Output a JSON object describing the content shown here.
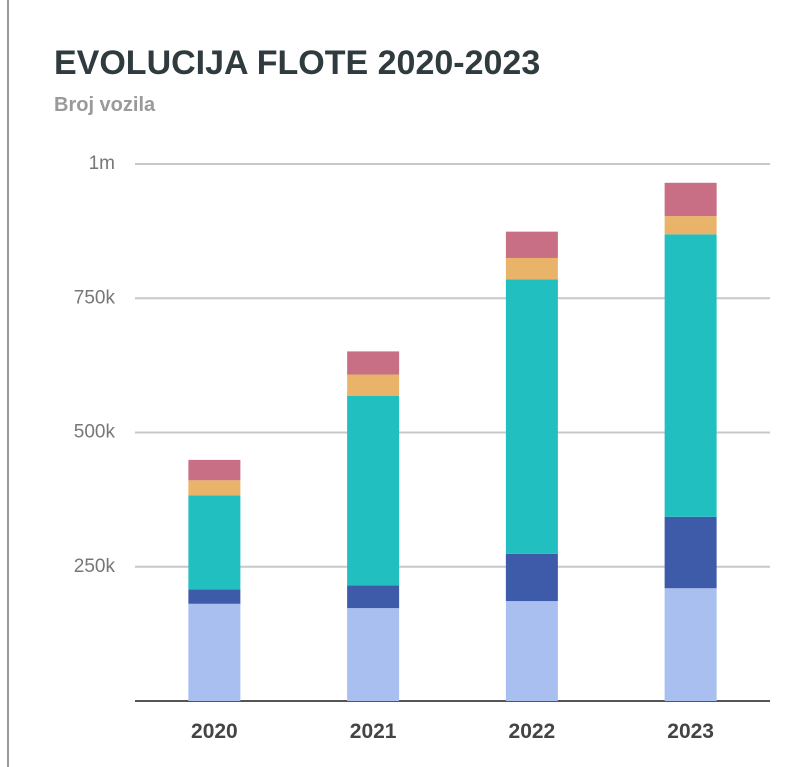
{
  "chart_data": {
    "type": "stacked_bar",
    "title": "EVOLUCIJA FLOTE 2020-2023",
    "subtitle": "Broj vozila",
    "categories": [
      "2020",
      "2021",
      "2022",
      "2023"
    ],
    "series": [
      {
        "color": "#a9bff0",
        "values": [
          181000,
          173000,
          186000,
          210000
        ]
      },
      {
        "color": "#3d5ba8",
        "values": [
          27000,
          42000,
          88000,
          133000
        ]
      },
      {
        "color": "#22bfc1",
        "values": [
          175000,
          353000,
          511000,
          526000
        ]
      },
      {
        "color": "#e9b46a",
        "values": [
          28000,
          40000,
          40000,
          34000
        ]
      },
      {
        "color": "#c86f85",
        "values": [
          38000,
          43000,
          49000,
          62000
        ]
      }
    ],
    "ylim": [
      0,
      1000000
    ],
    "yticks": [
      {
        "value": 250000,
        "label": "250k"
      },
      {
        "value": 500000,
        "label": "500k"
      },
      {
        "value": 750000,
        "label": "750k"
      },
      {
        "value": 1000000,
        "label": "1m"
      }
    ],
    "grid": true
  }
}
